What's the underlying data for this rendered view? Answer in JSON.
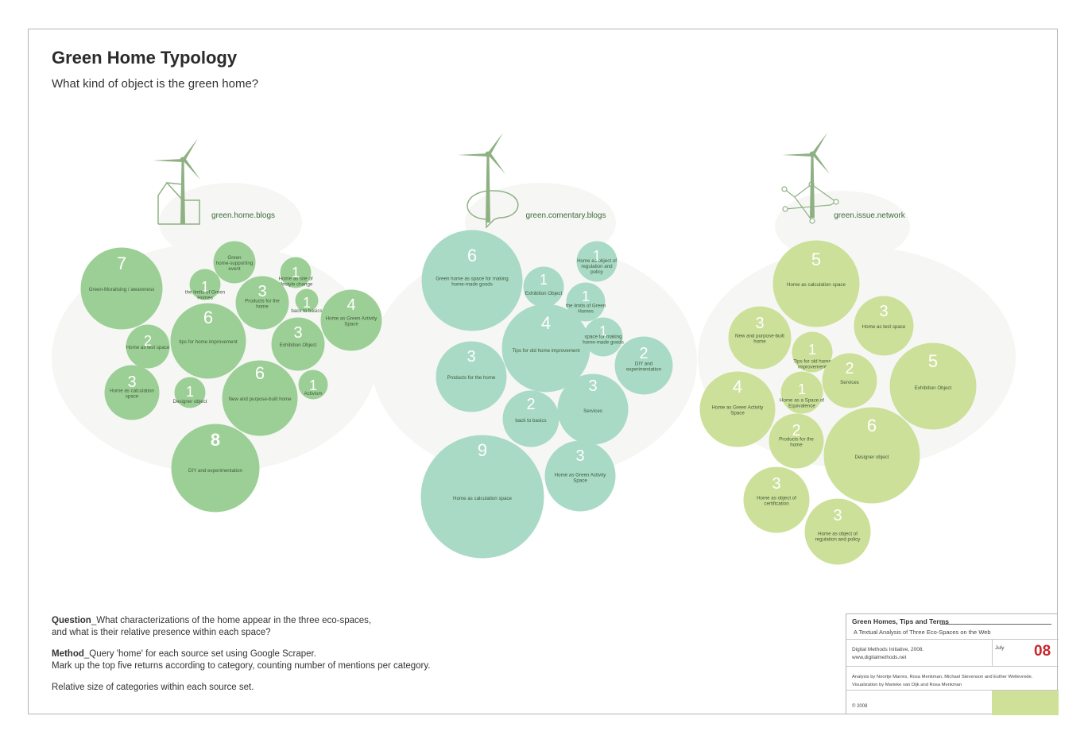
{
  "title": "Green Home Typology",
  "subtitle": "What kind of object is the green home?",
  "colors": {
    "blogs": "#9ccf95",
    "commentary": "#a8dac6",
    "issue": "#cde09a",
    "icon": "#8fb083",
    "label": "#3c6b3a",
    "accent": "#c7262c"
  },
  "clusters": [
    {
      "label": "green.home.blogs",
      "icon": "windmill-house-icon",
      "bubbles": [
        {
          "value": "7",
          "label": "Green-Moralising / awareness"
        },
        {
          "value": "",
          "label": "Green home-supporting event"
        },
        {
          "value": "1",
          "label": "Home as site of lifestyle change"
        },
        {
          "value": "1",
          "label": "the limits of Green Homes"
        },
        {
          "value": "3",
          "label": "Products for the home"
        },
        {
          "value": "1",
          "label": "back to basics"
        },
        {
          "value": "4",
          "label": "Home as Green Activity Space"
        },
        {
          "value": "2",
          "label": "Home as test space"
        },
        {
          "value": "6",
          "label": "tips for home improvement"
        },
        {
          "value": "3",
          "label": "Exhibition Object"
        },
        {
          "value": "3",
          "label": "Home as calculation space"
        },
        {
          "value": "1",
          "label": "Designer object"
        },
        {
          "value": "6",
          "label": "New and purpose-built home"
        },
        {
          "value": "1",
          "label": "Activism"
        },
        {
          "value": "8",
          "label": "DIY and experimentation"
        }
      ]
    },
    {
      "label": "green.comentary.blogs",
      "icon": "windmill-speech-bubble-icon",
      "bubbles": [
        {
          "value": "6",
          "label": "Green home as space for making home-made goods"
        },
        {
          "value": "1",
          "label": "Home as object of regulation and policy"
        },
        {
          "value": "1",
          "label": "Exhibition Object"
        },
        {
          "value": "1",
          "label": "the limits of Green Homes"
        },
        {
          "value": "4",
          "label": "Tips for old home improvement"
        },
        {
          "value": "1",
          "label": "space for making home-made goods"
        },
        {
          "value": "2",
          "label": "DIY and experimentation"
        },
        {
          "value": "3",
          "label": "Products for the home"
        },
        {
          "value": "2",
          "label": "back to basics"
        },
        {
          "value": "3",
          "label": "Services"
        },
        {
          "value": "9",
          "label": "Home as calculation space"
        },
        {
          "value": "3",
          "label": "Home as Green Activity Space"
        }
      ]
    },
    {
      "label": "green.issue.network",
      "icon": "windmill-network-icon",
      "bubbles": [
        {
          "value": "5",
          "label": "Home as calculation space"
        },
        {
          "value": "3",
          "label": "Home as test space"
        },
        {
          "value": "3",
          "label": "New and purpose-built home"
        },
        {
          "value": "1",
          "label": "Tips for old home improvement"
        },
        {
          "value": "2",
          "label": "Services"
        },
        {
          "value": "5",
          "label": "Exhibition Object"
        },
        {
          "value": "4",
          "label": "Home as Green Activity Space"
        },
        {
          "value": "1",
          "label": "Home as a Space of Equivalence"
        },
        {
          "value": "6",
          "label": "Designer object"
        },
        {
          "value": "2",
          "label": "Products for the home"
        },
        {
          "value": "3",
          "label": "Home as object of certification"
        },
        {
          "value": "3",
          "label": "Home as object of regulation and policy"
        }
      ]
    }
  ],
  "notes": {
    "question_label": "Question",
    "question_line1": "_What characterizations of the home appear in the three eco-spaces,",
    "question_line2": "and what is their relative presence within each space?",
    "method_label": "Method",
    "method_line1": "_Query 'home' for each source set using Google Scraper.",
    "method_line2": "Mark up the top five returns according to category, counting number of mentions per category.",
    "relative": "Relative size of categories within each source set."
  },
  "info": {
    "title": "Green Homes, Tips and Terms",
    "subtitle": "A Textual Analysis of  Three Eco-Spaces on the Web",
    "org": "Digital Methods Initiative, 2008.",
    "url": "www.digitalmethods.net",
    "month": "July",
    "number": "08",
    "credits1": "Analysis by Noortje Marres, Rosa Menkman, Michael Stevenson and Esther Weltevrede.",
    "credits2": "Visualization by Marieke van Dijk and Rosa Menkman",
    "copyright": "© 2008"
  }
}
